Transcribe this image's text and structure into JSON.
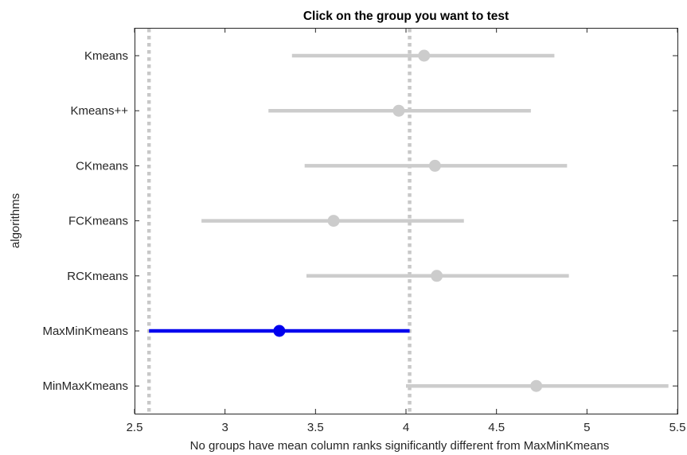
{
  "chart_data": {
    "type": "interval",
    "title": "Click on the group you want to test",
    "xlabel": "No groups have mean column ranks significantly different from MaxMinKmeans",
    "ylabel": "algorithms",
    "xlim": [
      2.5,
      5.5
    ],
    "xticks": [
      2.5,
      3,
      3.5,
      4,
      4.5,
      5,
      5.5
    ],
    "xtick_labels": [
      "2.5",
      "3",
      "3.5",
      "4",
      "4.5",
      "5",
      "5.5"
    ],
    "grid": false,
    "reference_lines": [
      2.58,
      4.02
    ],
    "groups": [
      {
        "label": "Kmeans",
        "mean": 4.1,
        "low": 3.37,
        "high": 4.82,
        "selected": false
      },
      {
        "label": "Kmeans++",
        "mean": 3.96,
        "low": 3.24,
        "high": 4.69,
        "selected": false
      },
      {
        "label": "CKmeans",
        "mean": 4.16,
        "low": 3.44,
        "high": 4.89,
        "selected": false
      },
      {
        "label": "FCKmeans",
        "mean": 3.6,
        "low": 2.87,
        "high": 4.32,
        "selected": false
      },
      {
        "label": "RCKmeans",
        "mean": 4.17,
        "low": 3.45,
        "high": 4.9,
        "selected": false
      },
      {
        "label": "MaxMinKmeans",
        "mean": 3.3,
        "low": 2.58,
        "high": 4.02,
        "selected": true
      },
      {
        "label": "MinMaxKmeans",
        "mean": 4.72,
        "low": 4.0,
        "high": 5.45,
        "selected": false
      }
    ],
    "colors": {
      "selected": "#0000ee",
      "unselected": "#cccccc",
      "reference": "#c8c8c8",
      "axis": "#262626"
    }
  }
}
